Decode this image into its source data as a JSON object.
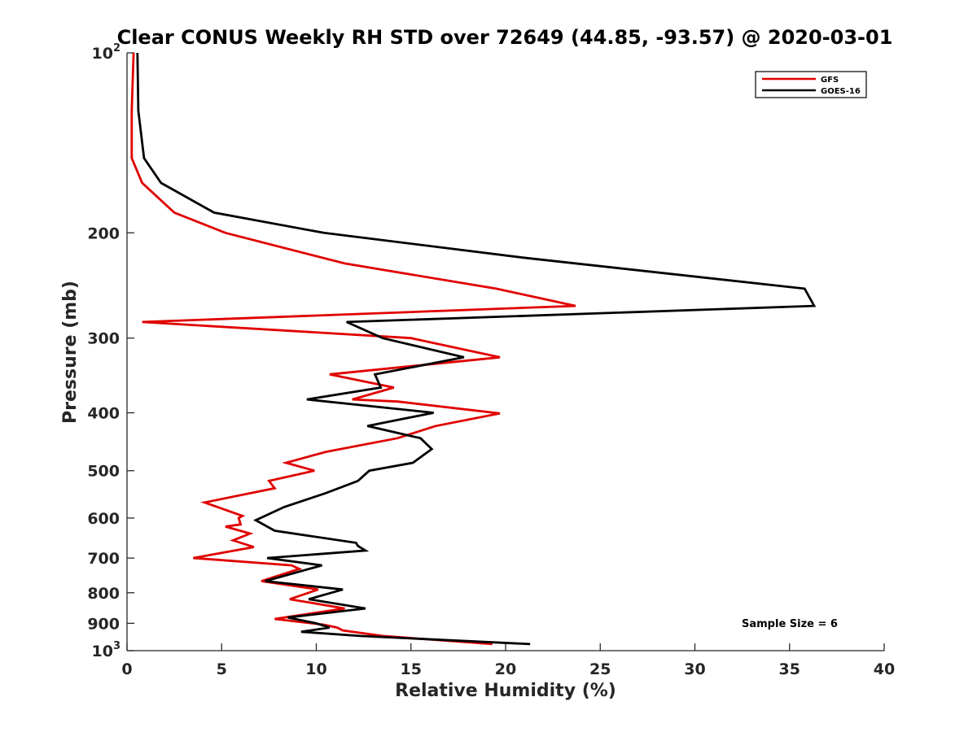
{
  "chart_data": {
    "type": "line",
    "title": "Clear CONUS Weekly RH STD over 72649 (44.85, -93.57) @ 2020-03-01",
    "xlabel": "Relative Humidity (%)",
    "ylabel": "Pressure (mb)",
    "xlim": [
      0,
      40
    ],
    "ylim": [
      100,
      1000
    ],
    "y_scale": "log",
    "y_reversed": true,
    "x_ticks": [
      0,
      5,
      10,
      15,
      20,
      25,
      30,
      35,
      40
    ],
    "y_ticks": [
      {
        "value": 100,
        "base": "10",
        "exp": "2"
      },
      {
        "value": 200,
        "label": "200"
      },
      {
        "value": 300,
        "label": "300"
      },
      {
        "value": 400,
        "label": "400"
      },
      {
        "value": 500,
        "label": "500"
      },
      {
        "value": 600,
        "label": "600"
      },
      {
        "value": 700,
        "label": "700"
      },
      {
        "value": 800,
        "label": "800"
      },
      {
        "value": 900,
        "label": "900"
      },
      {
        "value": 1000,
        "base": "10",
        "exp": "3"
      }
    ],
    "grid": false,
    "legend_position": "top-right",
    "annotation": "Sample Size = 6",
    "series": [
      {
        "name": "GFS",
        "color": "#e00000",
        "points": [
          [
            0.35,
            100
          ],
          [
            0.25,
            125
          ],
          [
            0.25,
            150
          ],
          [
            0.8,
            165
          ],
          [
            2.5,
            185
          ],
          [
            5.2,
            200
          ],
          [
            11.5,
            225
          ],
          [
            19.5,
            248
          ],
          [
            23.7,
            265
          ],
          [
            0.8,
            282
          ],
          [
            15.0,
            300
          ],
          [
            19.7,
            323
          ],
          [
            10.7,
            345
          ],
          [
            14.1,
            363
          ],
          [
            11.9,
            380
          ],
          [
            14.3,
            383
          ],
          [
            19.7,
            401
          ],
          [
            16.3,
            421
          ],
          [
            14.3,
            441
          ],
          [
            10.5,
            465
          ],
          [
            8.4,
            485
          ],
          [
            9.9,
            500
          ],
          [
            7.5,
            520
          ],
          [
            7.8,
            535
          ],
          [
            4.1,
            565
          ],
          [
            6.1,
            595
          ],
          [
            5.9,
            600
          ],
          [
            6.0,
            615
          ],
          [
            5.2,
            620
          ],
          [
            6.5,
            637
          ],
          [
            5.6,
            654
          ],
          [
            6.7,
            671
          ],
          [
            3.5,
            700
          ],
          [
            8.7,
            720
          ],
          [
            9.1,
            730
          ],
          [
            7.1,
            765
          ],
          [
            10.1,
            790
          ],
          [
            8.6,
            820
          ],
          [
            11.5,
            850
          ],
          [
            7.8,
            885
          ],
          [
            10.4,
            905
          ],
          [
            11.1,
            915
          ],
          [
            11.4,
            925
          ],
          [
            13.5,
            945
          ],
          [
            19.3,
            975
          ]
        ]
      },
      {
        "name": "GOES-16",
        "color": "#000000",
        "points": [
          [
            0.55,
            100
          ],
          [
            0.6,
            125
          ],
          [
            0.9,
            150
          ],
          [
            1.8,
            165
          ],
          [
            4.6,
            185
          ],
          [
            10.4,
            200
          ],
          [
            20.9,
            220
          ],
          [
            35.8,
            248
          ],
          [
            36.3,
            265
          ],
          [
            11.6,
            282
          ],
          [
            13.5,
            300
          ],
          [
            17.8,
            323
          ],
          [
            13.1,
            345
          ],
          [
            13.4,
            363
          ],
          [
            9.5,
            380
          ],
          [
            16.2,
            400
          ],
          [
            12.7,
            421
          ],
          [
            15.5,
            441
          ],
          [
            16.1,
            460
          ],
          [
            15.1,
            485
          ],
          [
            12.8,
            500
          ],
          [
            12.2,
            520
          ],
          [
            10.5,
            545
          ],
          [
            8.3,
            575
          ],
          [
            6.8,
            605
          ],
          [
            7.8,
            630
          ],
          [
            12.1,
            660
          ],
          [
            12.2,
            668
          ],
          [
            12.6,
            680
          ],
          [
            7.4,
            700
          ],
          [
            10.3,
            720
          ],
          [
            7.3,
            765
          ],
          [
            11.4,
            790
          ],
          [
            9.6,
            820
          ],
          [
            12.6,
            850
          ],
          [
            8.5,
            880
          ],
          [
            10.0,
            900
          ],
          [
            10.7,
            915
          ],
          [
            9.2,
            930
          ],
          [
            12.3,
            945
          ],
          [
            21.3,
            975
          ]
        ]
      }
    ]
  }
}
